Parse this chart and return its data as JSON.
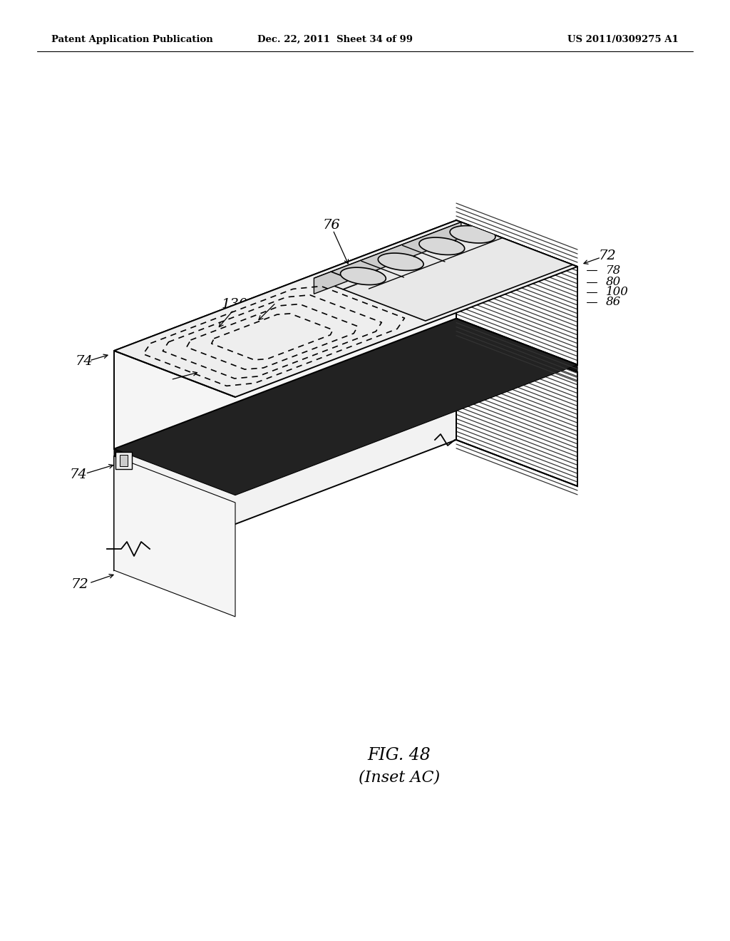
{
  "background_color": "#ffffff",
  "header_left": "Patent Application Publication",
  "header_mid": "Dec. 22, 2011  Sheet 34 of 99",
  "header_right": "US 2011/0309275 A1",
  "fig_label": "FIG. 48",
  "fig_sublabel": "(Inset AC)"
}
